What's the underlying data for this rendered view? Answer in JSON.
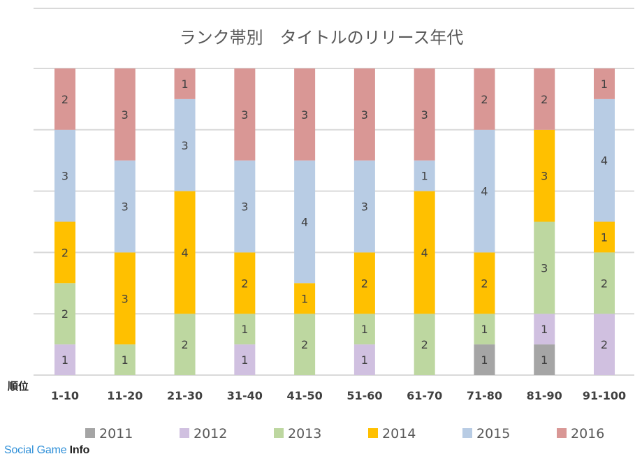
{
  "chart_data": {
    "type": "bar",
    "stacked": true,
    "title": "ランク帯別　タイトルのリリース年代",
    "xlabel": "順位",
    "ylabel": "",
    "ylim": [
      0,
      10
    ],
    "grid": true,
    "legend_position": "bottom",
    "categories": [
      "1-10",
      "11-20",
      "21-30",
      "31-40",
      "41-50",
      "51-60",
      "61-70",
      "71-80",
      "81-90",
      "91-100"
    ],
    "series": [
      {
        "name": "2011",
        "color": "#a5a5a5",
        "values": [
          0,
          0,
          0,
          0,
          0,
          0,
          0,
          1,
          1,
          0
        ]
      },
      {
        "name": "2012",
        "color": "#d0c0e0",
        "values": [
          1,
          0,
          0,
          1,
          0,
          1,
          0,
          0,
          1,
          2
        ]
      },
      {
        "name": "2013",
        "color": "#bdd7a0",
        "values": [
          2,
          1,
          2,
          1,
          2,
          1,
          2,
          1,
          3,
          2
        ]
      },
      {
        "name": "2014",
        "color": "#ffc000",
        "values": [
          2,
          3,
          4,
          2,
          1,
          2,
          4,
          2,
          3,
          1
        ]
      },
      {
        "name": "2015",
        "color": "#b8cce4",
        "values": [
          3,
          3,
          3,
          3,
          4,
          3,
          1,
          4,
          0,
          4
        ]
      },
      {
        "name": "2016",
        "color": "#d99795",
        "values": [
          2,
          3,
          1,
          3,
          3,
          3,
          3,
          2,
          2,
          1
        ]
      }
    ]
  },
  "watermark": {
    "part1": "Social Game ",
    "part2": "Info"
  }
}
